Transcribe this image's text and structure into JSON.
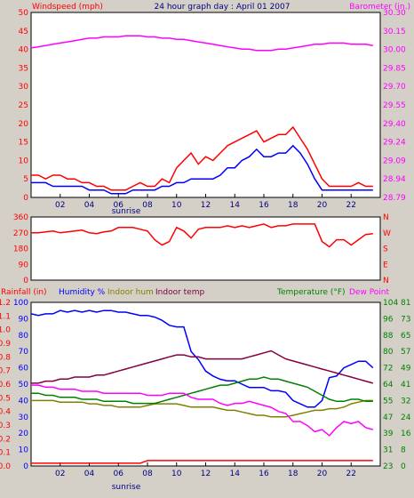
{
  "chart_data": [
    {
      "type": "line",
      "title": "24 hour graph day : April 01 2007",
      "left_label": "Windspeed (mph)",
      "right_label": "Barometer (in.)",
      "x": [
        0,
        0.5,
        1,
        1.5,
        2,
        2.5,
        3,
        3.5,
        4,
        4.5,
        5,
        5.5,
        6,
        6.5,
        7,
        7.5,
        8,
        8.5,
        9,
        9.5,
        10,
        10.5,
        11,
        11.5,
        12,
        12.5,
        13,
        13.5,
        14,
        14.5,
        15,
        15.5,
        16,
        16.5,
        17,
        17.5,
        18,
        18.5,
        19,
        19.5,
        20,
        20.5,
        21,
        21.5,
        22,
        22.5,
        23,
        23.5
      ],
      "xticks": [
        "02",
        "04",
        "06",
        "08",
        "10",
        "12",
        "14",
        "16",
        "18",
        "20",
        "22"
      ],
      "xtick_hours": [
        2,
        4,
        6,
        8,
        10,
        12,
        14,
        16,
        18,
        20,
        22
      ],
      "sunrise_label": "sunrise",
      "sunrise_hour": 6.5,
      "ylim_left": [
        0,
        50
      ],
      "yticks_left": [
        "0",
        "5",
        "10",
        "15",
        "20",
        "25",
        "30",
        "35",
        "40",
        "45",
        "50"
      ],
      "ylim_right": [
        28.79,
        30.3
      ],
      "yticks_right": [
        "28.79",
        "28.94",
        "29.09",
        "29.24",
        "29.40",
        "29.55",
        "29.70",
        "29.85",
        "30.00",
        "30.15",
        "30.30"
      ],
      "series": [
        {
          "name": "",
          "axis": "left",
          "color": "#ff0000",
          "values": [
            6,
            6,
            5,
            6,
            6,
            5,
            5,
            4,
            4,
            3,
            3,
            2,
            2,
            2,
            3,
            4,
            3,
            3,
            5,
            4,
            8,
            10,
            12,
            9,
            11,
            10,
            12,
            14,
            15,
            16,
            17,
            18,
            15,
            16,
            17,
            17,
            19,
            16,
            13,
            9,
            5,
            3,
            3,
            3,
            3,
            4,
            3,
            3
          ]
        },
        {
          "name": "",
          "axis": "left",
          "color": "#0000ff",
          "values": [
            4,
            4,
            4,
            3,
            3,
            3,
            3,
            3,
            2,
            2,
            2,
            1,
            1,
            1,
            2,
            2,
            2,
            2,
            3,
            3,
            4,
            4,
            5,
            5,
            5,
            5,
            6,
            8,
            8,
            10,
            11,
            13,
            11,
            11,
            12,
            12,
            14,
            12,
            9,
            5,
            2,
            2,
            2,
            2,
            2,
            2,
            2,
            2
          ]
        },
        {
          "name": "",
          "axis": "right",
          "color": "#ff00ff",
          "values": [
            30.01,
            30.02,
            30.03,
            30.04,
            30.05,
            30.06,
            30.07,
            30.08,
            30.09,
            30.09,
            30.1,
            30.1,
            30.1,
            30.11,
            30.11,
            30.11,
            30.1,
            30.1,
            30.09,
            30.09,
            30.08,
            30.08,
            30.07,
            30.06,
            30.05,
            30.04,
            30.03,
            30.02,
            30.01,
            30.0,
            30.0,
            29.99,
            29.99,
            29.99,
            30.0,
            30.0,
            30.01,
            30.02,
            30.03,
            30.04,
            30.04,
            30.05,
            30.05,
            30.05,
            30.04,
            30.04,
            30.04,
            30.03
          ]
        }
      ]
    },
    {
      "type": "line",
      "left_ticks": [
        "360",
        "270",
        "180",
        "90",
        "0"
      ],
      "ylim": [
        0,
        360
      ],
      "right_ticks": [
        "N",
        "W",
        "S",
        "E",
        "N"
      ],
      "series": [
        {
          "name": "",
          "color": "#ff0000",
          "values": [
            270,
            270,
            275,
            280,
            270,
            275,
            280,
            285,
            270,
            265,
            275,
            280,
            300,
            300,
            300,
            290,
            280,
            230,
            200,
            220,
            300,
            280,
            240,
            290,
            300,
            300,
            300,
            310,
            300,
            310,
            300,
            310,
            320,
            300,
            310,
            310,
            320,
            320,
            320,
            320,
            220,
            190,
            230,
            230,
            200,
            230,
            260,
            265
          ]
        }
      ]
    },
    {
      "type": "line",
      "labels": {
        "rainfall": "Rainfall (in)",
        "humidity": "Humidity %",
        "indoor_hum": "Indoor hum",
        "indoor_temp": "Indoor temp",
        "temperature": "Temperature (°F)",
        "dew_point": "Dew Point"
      },
      "ylim_rain": [
        0,
        1.2
      ],
      "ticks_rain": [
        "0.0",
        "0.1",
        "0.2",
        "0.3",
        "0.4",
        "0.5",
        "0.6",
        "0.7",
        "0.8",
        "0.9",
        "1.0",
        "1.1",
        "1.2"
      ],
      "ylim_humidity": [
        0,
        100
      ],
      "ticks_humidity": [
        "0",
        "10",
        "20",
        "30",
        "40",
        "50",
        "60",
        "70",
        "80",
        "90",
        "100"
      ],
      "ylim_temperature": [
        23,
        104
      ],
      "ticks_temperature": [
        "23",
        "31",
        "39",
        "47",
        "55",
        "64",
        "72",
        "80",
        "88",
        "96",
        "104"
      ],
      "ylim_dewpoint": [
        0,
        81
      ],
      "ticks_dewpoint": [
        "0",
        "8",
        "16",
        "24",
        "32",
        "41",
        "49",
        "57",
        "65",
        "73",
        "81"
      ],
      "series": [
        {
          "name": "Rainfall (in)",
          "axis": "rain",
          "color": "#ff0000",
          "values": [
            0.02,
            0.02,
            0.02,
            0.02,
            0.02,
            0.02,
            0.02,
            0.02,
            0.02,
            0.02,
            0.02,
            0.02,
            0.02,
            0.02,
            0.02,
            0.02,
            0.04,
            0.04,
            0.04,
            0.04,
            0.04,
            0.04,
            0.04,
            0.04,
            0.04,
            0.04,
            0.04,
            0.04,
            0.04,
            0.04,
            0.04,
            0.04,
            0.04,
            0.04,
            0.04,
            0.04,
            0.04,
            0.04,
            0.04,
            0.04,
            0.04,
            0.04,
            0.04,
            0.04,
            0.04,
            0.04,
            0.04,
            0.04
          ]
        },
        {
          "name": "Humidity %",
          "axis": "humidity",
          "color": "#0000ff",
          "values": [
            93,
            92,
            93,
            93,
            95,
            94,
            95,
            94,
            95,
            94,
            95,
            95,
            94,
            94,
            93,
            92,
            92,
            91,
            89,
            86,
            85,
            85,
            70,
            65,
            58,
            55,
            53,
            52,
            52,
            50,
            48,
            48,
            48,
            46,
            46,
            45,
            40,
            38,
            36,
            36,
            40,
            54,
            55,
            60,
            62,
            64,
            64,
            60
          ]
        },
        {
          "name": "Indoor hum",
          "axis": "humidity",
          "color": "#808000",
          "values": [
            40,
            40,
            40,
            40,
            39,
            39,
            39,
            39,
            38,
            38,
            37,
            37,
            36,
            36,
            36,
            36,
            37,
            38,
            38,
            38,
            38,
            37,
            36,
            36,
            36,
            36,
            35,
            34,
            34,
            33,
            32,
            31,
            31,
            30,
            30,
            30,
            31,
            32,
            33,
            34,
            34,
            35,
            35,
            36,
            38,
            39,
            40,
            40
          ]
        },
        {
          "name": "Indoor temp",
          "axis": "temperature",
          "color": "#800040",
          "values": [
            64,
            64,
            65,
            65,
            66,
            66,
            67,
            67,
            67,
            68,
            68,
            69,
            70,
            71,
            72,
            73,
            74,
            75,
            76,
            77,
            78,
            78,
            77,
            77,
            76,
            76,
            76,
            76,
            76,
            76,
            77,
            78,
            79,
            80,
            78,
            76,
            75,
            74,
            73,
            72,
            71,
            70,
            69,
            68,
            67,
            66,
            65,
            64
          ]
        },
        {
          "name": "Temperature (°F)",
          "axis": "temperature",
          "color": "#008000",
          "values": [
            59,
            59,
            58,
            58,
            57,
            57,
            57,
            56,
            56,
            56,
            55,
            55,
            55,
            55,
            54,
            54,
            54,
            54,
            55,
            56,
            57,
            58,
            59,
            60,
            61,
            62,
            63,
            63,
            64,
            65,
            66,
            66,
            67,
            66,
            66,
            65,
            64,
            63,
            62,
            60,
            58,
            56,
            55,
            55,
            56,
            56,
            55,
            55
          ]
        },
        {
          "name": "Dew Point",
          "axis": "dewpoint",
          "color": "#ff00ff",
          "values": [
            40,
            40,
            39,
            39,
            38,
            38,
            38,
            37,
            37,
            37,
            36,
            36,
            36,
            36,
            36,
            36,
            35,
            35,
            35,
            36,
            36,
            36,
            34,
            33,
            33,
            33,
            31,
            30,
            31,
            31,
            32,
            31,
            30,
            29,
            27,
            26,
            22,
            22,
            20,
            17,
            18,
            15,
            19,
            22,
            21,
            22,
            19,
            18
          ]
        }
      ]
    }
  ]
}
